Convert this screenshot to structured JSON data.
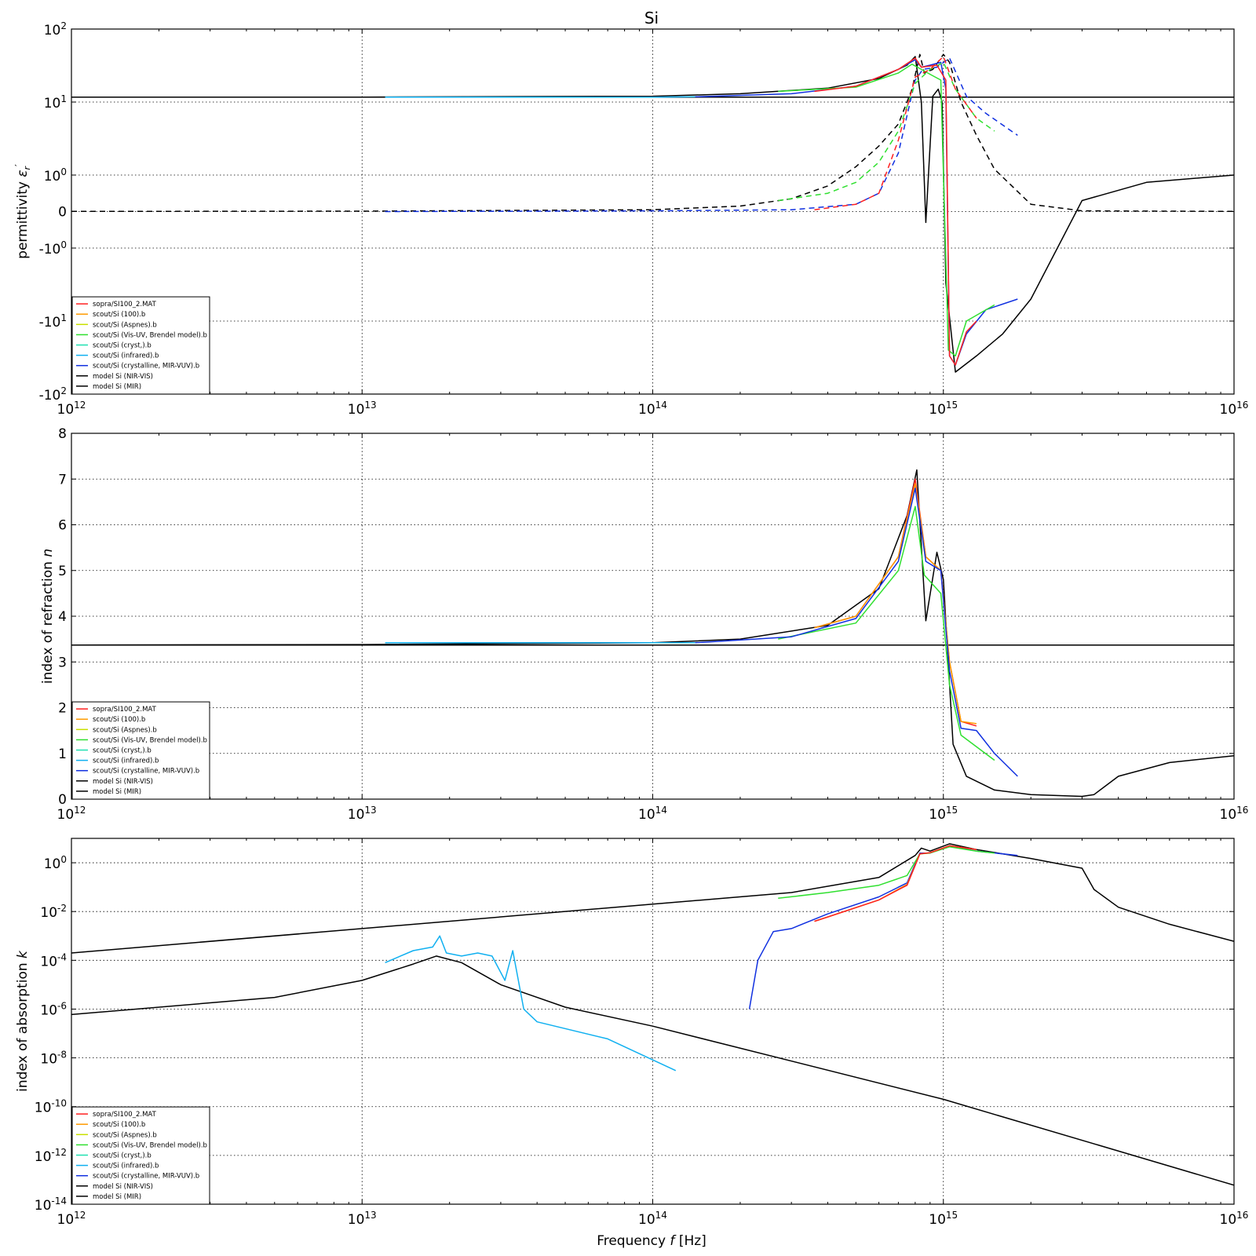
{
  "title": "Si",
  "xlabel": "Frequency $f$ [Hz]",
  "legend_entries": [
    {
      "label": "sopra/SI100_2.MAT",
      "color": "#ff2020"
    },
    {
      "label": "scout/Si (100).b",
      "color": "#ff9a00"
    },
    {
      "label": "scout/Si (Aspnes).b",
      "color": "#c9e000"
    },
    {
      "label": "scout/Si (Vis-UV, Brendel model).b",
      "color": "#30e030"
    },
    {
      "label": "scout/Si (cryst,).b",
      "color": "#20e0b0"
    },
    {
      "label": "scout/Si (infrared).b",
      "color": "#10b0f0"
    },
    {
      "label": "scout/Si (crystalline, MIR-VUV).b",
      "color": "#1030e0"
    },
    {
      "label": "model Si (NIR-VIS)",
      "color": "#000000"
    },
    {
      "label": "model Si (MIR)",
      "color": "#000000"
    }
  ],
  "chart_data": [
    {
      "type": "line",
      "title": "Si",
      "ylabel": "permittivity $\\epsilon_r'$",
      "xscale": "log",
      "xlim": [
        1000000000000.0,
        1e+16
      ],
      "yscale": "symlog",
      "ylim": [
        -100,
        100
      ],
      "xticks": [
        "10^12",
        "10^13",
        "10^14",
        "10^15",
        "10^16"
      ],
      "yticks": [
        "10^2",
        "10^1",
        "10^0",
        "0",
        "-10^0",
        "-10^1",
        "-10^2"
      ],
      "grid": true,
      "legend": "lower-left",
      "series": [
        {
          "name": "model Si (MIR)",
          "color": "#000000",
          "style": "solid",
          "x": [
            1000000000000.0,
            1e+16
          ],
          "y": [
            11.7,
            11.7
          ]
        },
        {
          "name": "model Si (NIR-VIS)",
          "color": "#000000",
          "style": "solid",
          "x": [
            1000000000000.0,
            10000000000000.0,
            100000000000000.0,
            200000000000000.0,
            400000000000000.0,
            600000000000000.0,
            750000000000000.0,
            800000000000000.0,
            840000000000000.0,
            870000000000000.0,
            920000000000000.0,
            960000000000000.0,
            990000000000000.0,
            1020000000000000.0,
            1100000000000000.0,
            1300000000000000.0,
            1600000000000000.0,
            2000000000000000.0,
            3000000000000000.0,
            5000000000000000.0,
            1e+16
          ],
          "y": [
            11.7,
            11.7,
            12,
            13,
            15.5,
            21,
            32,
            42,
            10,
            -0.3,
            12,
            15,
            10,
            -3,
            -50,
            -30,
            -15,
            -5,
            0.3,
            0.8,
            1.0
          ]
        },
        {
          "name": "model Si (NIR-VIS) imag",
          "color": "#000000",
          "style": "dashed",
          "x": [
            1000000000000.0,
            10000000000000.0,
            100000000000000.0,
            200000000000000.0,
            300000000000000.0,
            400000000000000.0,
            500000000000000.0,
            600000000000000.0,
            700000000000000.0,
            780000000000000.0,
            830000000000000.0,
            860000000000000.0,
            920000000000000.0,
            1000000000000000.0,
            1050000000000000.0,
            1150000000000000.0,
            1300000000000000.0,
            1500000000000000.0,
            2000000000000000.0,
            3000000000000000.0,
            1e+16
          ],
          "y": [
            0.005,
            0.01,
            0.05,
            0.15,
            0.35,
            0.7,
            1.3,
            2.5,
            5,
            15,
            45,
            25,
            28,
            45,
            35,
            10,
            3.5,
            1.2,
            0.2,
            0.02,
            0.005
          ]
        },
        {
          "name": "scout/Si (crystalline, MIR-VUV).b",
          "color": "#1030e0",
          "style": "solid",
          "x": [
            140000000000000.0,
            300000000000000.0,
            500000000000000.0,
            700000000000000.0,
            800000000000000.0,
            840000000000000.0,
            900000000000000.0,
            980000000000000.0,
            1020000000000000.0,
            1050000000000000.0,
            1100000000000000.0,
            1200000000000000.0,
            1400000000000000.0,
            1800000000000000.0
          ],
          "y": [
            11.8,
            13,
            16.5,
            28,
            38,
            30,
            32,
            35,
            15,
            -30,
            -40,
            -15,
            -7,
            -5
          ]
        },
        {
          "name": "scout/Si (crystalline, MIR-VUV).b imag",
          "color": "#1030e0",
          "style": "dashed",
          "x": [
            12000000000000.0,
            100000000000000.0,
            300000000000000.0,
            500000000000000.0,
            600000000000000.0,
            700000000000000.0,
            800000000000000.0,
            850000000000000.0,
            950000000000000.0,
            1050000000000000.0,
            1200000000000000.0,
            1400000000000000.0,
            1800000000000000.0
          ],
          "y": [
            0.001,
            0.02,
            0.05,
            0.2,
            0.5,
            2,
            20,
            28,
            30,
            40,
            12,
            7,
            3.5
          ]
        },
        {
          "name": "scout/Si (infrared).b",
          "color": "#10b0f0",
          "style": "solid",
          "x": [
            12000000000000.0,
            100000000000000.0,
            140000000000000.0
          ],
          "y": [
            11.7,
            11.7,
            11.8
          ]
        },
        {
          "name": "scout/Si (Vis-UV, Brendel model).b",
          "color": "#30e030",
          "style": "solid",
          "x": [
            270000000000000.0,
            500000000000000.0,
            700000000000000.0,
            780000000000000.0,
            840000000000000.0,
            900000000000000.0,
            980000000000000.0,
            1040000000000000.0,
            1100000000000000.0,
            1200000000000000.0,
            1500000000000000.0
          ],
          "y": [
            14,
            16,
            25,
            33,
            28,
            24,
            20,
            -25,
            -30,
            -10,
            -6
          ]
        },
        {
          "name": "scout/Si (Vis-UV, Brendel model).b imag",
          "color": "#30e030",
          "style": "dashed",
          "x": [
            270000000000000.0,
            400000000000000.0,
            500000000000000.0,
            600000000000000.0,
            700000000000000.0,
            800000000000000.0,
            900000000000000.0,
            1000000000000000.0,
            1100000000000000.0,
            1300000000000000.0,
            1500000000000000.0
          ],
          "y": [
            0.3,
            0.5,
            0.8,
            1.5,
            4,
            18,
            28,
            35,
            15,
            6,
            4
          ]
        },
        {
          "name": "sopra/SI100_2.MAT",
          "color": "#ff2020",
          "style": "solid",
          "x": [
            360000000000000.0,
            500000000000000.0,
            700000000000000.0,
            800000000000000.0,
            840000000000000.0,
            950000000000000.0,
            1020000000000000.0,
            1050000000000000.0,
            1100000000000000.0,
            1200000000000000.0,
            1300000000000000.0
          ],
          "y": [
            14,
            16.5,
            28,
            40,
            30,
            32,
            20,
            -30,
            -40,
            -14,
            -10
          ]
        },
        {
          "name": "sopra/SI100_2.MAT imag",
          "color": "#ff2020",
          "style": "dashed",
          "x": [
            360000000000000.0,
            500000000000000.0,
            600000000000000.0,
            700000000000000.0,
            800000000000000.0,
            900000000000000.0,
            1000000000000000.0,
            1100000000000000.0,
            1300000000000000.0
          ],
          "y": [
            0.05,
            0.2,
            0.5,
            3,
            22,
            28,
            42,
            15,
            6
          ]
        }
      ]
    },
    {
      "type": "line",
      "ylabel": "index of refraction $n$",
      "xscale": "log",
      "xlim": [
        1000000000000.0,
        1e+16
      ],
      "ylim": [
        0,
        8
      ],
      "xticks": [
        "10^12",
        "10^13",
        "10^14",
        "10^15",
        "10^16"
      ],
      "yticks": [
        "0",
        "1",
        "2",
        "3",
        "4",
        "5",
        "6",
        "7",
        "8"
      ],
      "grid": true,
      "legend": "lower-left",
      "series": [
        {
          "name": "model Si (MIR)",
          "color": "#000000",
          "style": "solid",
          "x": [
            1000000000000.0,
            1e+16
          ],
          "y": [
            3.37,
            3.37
          ]
        },
        {
          "name": "model Si (NIR-VIS)",
          "color": "#000000",
          "style": "solid",
          "x": [
            1000000000000.0,
            10000000000000.0,
            100000000000000.0,
            200000000000000.0,
            400000000000000.0,
            600000000000000.0,
            750000000000000.0,
            810000000000000.0,
            870000000000000.0,
            950000000000000.0,
            1000000000000000.0,
            1080000000000000.0,
            1200000000000000.0,
            1500000000000000.0,
            2000000000000000.0,
            3000000000000000.0,
            3300000000000000.0,
            4000000000000000.0,
            6000000000000000.0,
            1e+16
          ],
          "y": [
            3.37,
            3.38,
            3.42,
            3.5,
            3.8,
            4.6,
            6.2,
            7.2,
            3.9,
            5.4,
            4.8,
            1.2,
            0.5,
            0.2,
            0.1,
            0.06,
            0.1,
            0.5,
            0.8,
            0.95
          ]
        },
        {
          "name": "sopra/SI100_2.MAT",
          "color": "#ff2020",
          "style": "solid",
          "x": [
            360000000000000.0,
            500000000000000.0,
            700000000000000.0,
            800000000000000.0,
            870000000000000.0,
            980000000000000.0,
            1050000000000000.0,
            1150000000000000.0,
            1300000000000000.0
          ],
          "y": [
            3.75,
            4.0,
            5.3,
            7.0,
            5.3,
            5.0,
            3.0,
            1.7,
            1.6
          ]
        },
        {
          "name": "scout/Si (100).b",
          "color": "#ff9a00",
          "style": "solid",
          "x": [
            360000000000000.0,
            500000000000000.0,
            700000000000000.0,
            800000000000000.0,
            870000000000000.0,
            980000000000000.0,
            1050000000000000.0,
            1150000000000000.0,
            1300000000000000.0
          ],
          "y": [
            3.75,
            4.0,
            5.3,
            6.9,
            5.3,
            5.0,
            3.0,
            1.7,
            1.65
          ]
        },
        {
          "name": "scout/Si (Vis-UV, Brendel model).b",
          "color": "#30e030",
          "style": "solid",
          "x": [
            270000000000000.0,
            500000000000000.0,
            700000000000000.0,
            800000000000000.0,
            860000000000000.0,
            980000000000000.0,
            1050000000000000.0,
            1150000000000000.0,
            1500000000000000.0
          ],
          "y": [
            3.5,
            3.85,
            5.0,
            6.4,
            4.9,
            4.5,
            2.5,
            1.4,
            0.85
          ]
        },
        {
          "name": "scout/Si (infrared).b",
          "color": "#10b0f0",
          "style": "solid",
          "x": [
            12000000000000.0,
            100000000000000.0,
            140000000000000.0
          ],
          "y": [
            3.42,
            3.42,
            3.42
          ]
        },
        {
          "name": "scout/Si (crystalline, MIR-VUV).b",
          "color": "#1030e0",
          "style": "solid",
          "x": [
            140000000000000.0,
            300000000000000.0,
            500000000000000.0,
            700000000000000.0,
            800000000000000.0,
            870000000000000.0,
            980000000000000.0,
            1050000000000000.0,
            1150000000000000.0,
            1300000000000000.0,
            1500000000000000.0,
            1800000000000000.0
          ],
          "y": [
            3.42,
            3.55,
            3.95,
            5.2,
            6.8,
            5.2,
            5.0,
            2.8,
            1.55,
            1.5,
            1.0,
            0.5
          ]
        }
      ]
    },
    {
      "type": "line",
      "ylabel": "index of absorption $k$",
      "xlabel": "Frequency $f$ [Hz]",
      "xscale": "log",
      "xlim": [
        1000000000000.0,
        1e+16
      ],
      "yscale": "log",
      "ylim": [
        1e-14,
        10
      ],
      "xticks": [
        "10^12",
        "10^13",
        "10^14",
        "10^15",
        "10^16"
      ],
      "yticks": [
        "10^-14",
        "10^-12",
        "10^-10",
        "10^-8",
        "10^-6",
        "10^-4",
        "10^-2",
        "10^0"
      ],
      "grid": true,
      "legend": "lower-left",
      "series": [
        {
          "name": "model Si (NIR-VIS)",
          "color": "#000000",
          "style": "solid",
          "x": [
            1000000000000.0,
            10000000000000.0,
            100000000000000.0,
            300000000000000.0,
            600000000000000.0,
            800000000000000.0,
            840000000000000.0,
            900000000000000.0,
            1050000000000000.0,
            1300000000000000.0,
            2000000000000000.0,
            3000000000000000.0,
            3300000000000000.0,
            4000000000000000.0,
            6000000000000000.0,
            1e+16
          ],
          "y": [
            0.0002,
            0.002,
            0.02,
            0.06,
            0.25,
            2.0,
            4.0,
            3.0,
            6.0,
            3.5,
            1.5,
            0.6,
            0.08,
            0.015,
            0.003,
            0.0006
          ]
        },
        {
          "name": "model Si (MIR)",
          "color": "#000000",
          "style": "solid",
          "x": [
            1000000000000.0,
            5000000000000.0,
            10000000000000.0,
            15000000000000.0,
            18000000000000.0,
            22000000000000.0,
            30000000000000.0,
            50000000000000.0,
            100000000000000.0,
            1000000000000000.0,
            1e+16
          ],
          "y": [
            6e-07,
            3e-06,
            1.5e-05,
            7e-05,
            0.00015,
            8e-05,
            1e-05,
            1.2e-06,
            2e-07,
            2e-10,
            6e-14
          ]
        },
        {
          "name": "scout/Si (infrared).b",
          "color": "#10b0f0",
          "style": "solid",
          "x": [
            12000000000000.0,
            15000000000000.0,
            17500000000000.0,
            18500000000000.0,
            19500000000000.0,
            22000000000000.0,
            25000000000000.0,
            28000000000000.0,
            31000000000000.0,
            33000000000000.0,
            36000000000000.0,
            40000000000000.0,
            70000000000000.0,
            120000000000000.0
          ],
          "y": [
            8e-05,
            0.00025,
            0.00035,
            0.001,
            0.0002,
            0.00015,
            0.0002,
            0.00015,
            1.5e-05,
            0.00025,
            1e-06,
            3e-07,
            6e-08,
            3e-09
          ]
        },
        {
          "name": "scout/Si (crystalline, MIR-VUV).b",
          "color": "#1030e0",
          "style": "solid",
          "x": [
            215000000000000.0,
            230000000000000.0,
            260000000000000.0,
            300000000000000.0,
            400000000000000.0,
            600000000000000.0,
            750000000000000.0,
            830000000000000.0,
            900000000000000.0,
            1050000000000000.0,
            1300000000000000.0,
            1800000000000000.0
          ],
          "y": [
            1e-06,
            0.0001,
            0.0015,
            0.002,
            0.008,
            0.04,
            0.15,
            2.5,
            2.5,
            5.0,
            3.0,
            2.0
          ]
        },
        {
          "name": "scout/Si (Vis-UV, Brendel model).b",
          "color": "#30e030",
          "style": "solid",
          "x": [
            270000000000000.0,
            400000000000000.0,
            600000000000000.0,
            750000000000000.0,
            830000000000000.0,
            900000000000000.0,
            1050000000000000.0,
            1300000000000000.0,
            1500000000000000.0
          ],
          "y": [
            0.035,
            0.06,
            0.12,
            0.3,
            2.3,
            2.5,
            4.5,
            3.0,
            2.5
          ]
        },
        {
          "name": "scout/Si (100).b",
          "color": "#ff9a00",
          "style": "solid",
          "x": [
            360000000000000.0,
            400000000000000.0,
            600000000000000.0,
            750000000000000.0,
            830000000000000.0,
            900000000000000.0,
            1050000000000000.0,
            1300000000000000.0
          ],
          "y": [
            0.004,
            0.006,
            0.03,
            0.13,
            2.3,
            2.6,
            5.0,
            3.5
          ]
        },
        {
          "name": "sopra/SI100_2.MAT",
          "color": "#ff2020",
          "style": "solid",
          "x": [
            360000000000000.0,
            400000000000000.0,
            600000000000000.0,
            750000000000000.0,
            830000000000000.0,
            900000000000000.0,
            1050000000000000.0,
            1300000000000000.0
          ],
          "y": [
            0.004,
            0.006,
            0.03,
            0.12,
            2.3,
            2.6,
            5.0,
            3.5
          ]
        }
      ]
    }
  ]
}
